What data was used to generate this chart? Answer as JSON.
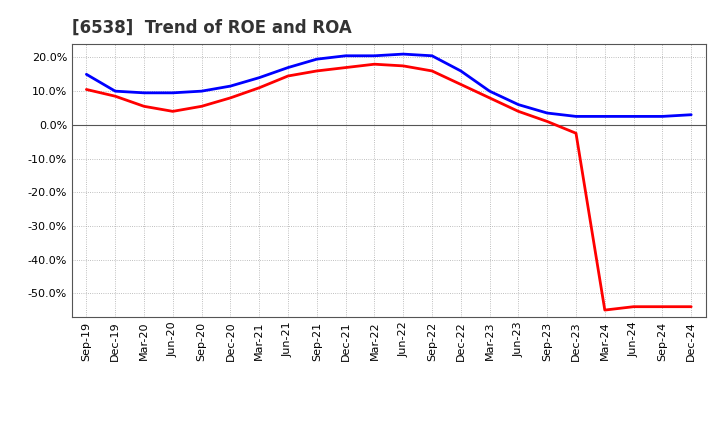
{
  "title": "[6538]  Trend of ROE and ROA",
  "x_labels": [
    "Sep-19",
    "Dec-19",
    "Mar-20",
    "Jun-20",
    "Sep-20",
    "Dec-20",
    "Mar-21",
    "Jun-21",
    "Sep-21",
    "Dec-21",
    "Mar-22",
    "Jun-22",
    "Sep-22",
    "Dec-22",
    "Mar-23",
    "Jun-23",
    "Sep-23",
    "Dec-23",
    "Mar-24",
    "Jun-24",
    "Sep-24",
    "Dec-24"
  ],
  "roe": [
    10.5,
    8.5,
    5.5,
    4.0,
    5.5,
    8.0,
    11.0,
    14.5,
    16.0,
    17.0,
    18.0,
    17.5,
    16.0,
    12.0,
    8.0,
    4.0,
    1.0,
    -2.5,
    -55.0,
    -54.0,
    -54.0,
    -54.0
  ],
  "roa": [
    15.0,
    10.0,
    9.5,
    9.5,
    10.0,
    11.5,
    14.0,
    17.0,
    19.5,
    20.5,
    20.5,
    21.0,
    20.5,
    16.0,
    10.0,
    6.0,
    3.5,
    2.5,
    2.5,
    2.5,
    2.5,
    3.0
  ],
  "roe_color": "#ff0000",
  "roa_color": "#0000ff",
  "background_color": "#ffffff",
  "grid_color": "#aaaaaa",
  "ylim": [
    -57,
    24
  ],
  "yticks": [
    20.0,
    10.0,
    0.0,
    -10.0,
    -20.0,
    -30.0,
    -40.0,
    -50.0
  ],
  "line_width": 2.0,
  "title_fontsize": 12,
  "tick_fontsize": 8
}
